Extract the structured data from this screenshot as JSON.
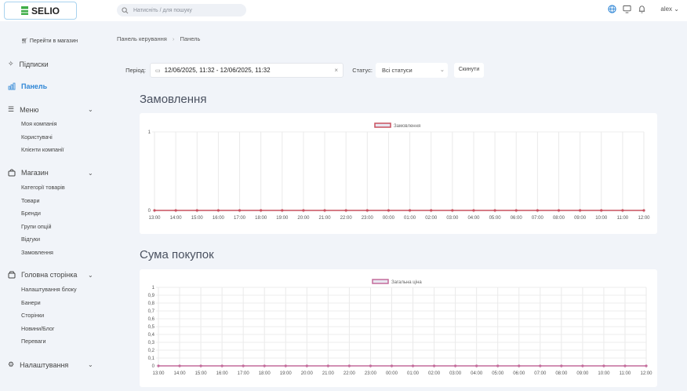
{
  "header": {
    "logo": "SELIO",
    "search_placeholder": "Натисніть / для пошуку",
    "user": "alex"
  },
  "sidebar": {
    "shop_link": "Перейти в магазин",
    "subscriptions": "Підписки",
    "panel": "Панель",
    "groups": [
      {
        "label": "Меню",
        "items": [
          "Моя компанія",
          "Користувачі",
          "Клієнти компанії"
        ]
      },
      {
        "label": "Магазин",
        "items": [
          "Категорії товарів",
          "Товари",
          "Бренди",
          "Групи опцій",
          "Відгуки",
          "Замовлення"
        ]
      },
      {
        "label": "Головна сторінка",
        "items": [
          "Налаштування блоку",
          "Банери",
          "Сторінки",
          "Новини/Блог",
          "Переваги"
        ]
      },
      {
        "label": "Налаштування",
        "items": []
      }
    ]
  },
  "breadcrumb": {
    "root": "Панель керування",
    "current": "Панель"
  },
  "filters": {
    "period_label": "Період:",
    "period_value": "12/06/2025, 11:32 - 12/06/2025, 11:32",
    "status_label": "Статус:",
    "status_value": "Всі статуси",
    "reset": "Скинути"
  },
  "colors": {
    "accent": "#2f86d6",
    "orders_line": "#c9505f",
    "sum_line": "#c46b9b"
  },
  "chart_data": [
    {
      "type": "line",
      "title": "Замовлення",
      "legend": "Замовлення",
      "legend_position": "top",
      "grid": true,
      "x": [
        "13:00",
        "14:00",
        "15:00",
        "16:00",
        "17:00",
        "18:00",
        "19:00",
        "20:00",
        "21:00",
        "22:00",
        "23:00",
        "00:00",
        "01:00",
        "02:00",
        "03:00",
        "04:00",
        "05:00",
        "06:00",
        "07:00",
        "08:00",
        "09:00",
        "10:00",
        "11:00",
        "12:00"
      ],
      "values": [
        0,
        0,
        0,
        0,
        0,
        0,
        0,
        0,
        0,
        0,
        0,
        0,
        0,
        0,
        0,
        0,
        0,
        0,
        0,
        0,
        0,
        0,
        0,
        0
      ],
      "ylim": [
        0,
        1
      ],
      "yticks": [
        "0",
        "1"
      ]
    },
    {
      "type": "line",
      "title": "Сума покупок",
      "legend": "Загальна ціна",
      "legend_position": "top",
      "grid": true,
      "x": [
        "13:00",
        "14:00",
        "15:00",
        "16:00",
        "17:00",
        "18:00",
        "19:00",
        "20:00",
        "21:00",
        "22:00",
        "23:00",
        "00:00",
        "01:00",
        "02:00",
        "03:00",
        "04:00",
        "05:00",
        "06:00",
        "07:00",
        "08:00",
        "09:00",
        "10:00",
        "11:00",
        "12:00"
      ],
      "values": [
        0,
        0,
        0,
        0,
        0,
        0,
        0,
        0,
        0,
        0,
        0,
        0,
        0,
        0,
        0,
        0,
        0,
        0,
        0,
        0,
        0,
        0,
        0,
        0
      ],
      "ylim": [
        0,
        1
      ],
      "yticks": [
        "0",
        "0,1",
        "0,2",
        "0,3",
        "0,4",
        "0,5",
        "0,6",
        "0,7",
        "0,8",
        "0,9",
        "1"
      ]
    }
  ]
}
